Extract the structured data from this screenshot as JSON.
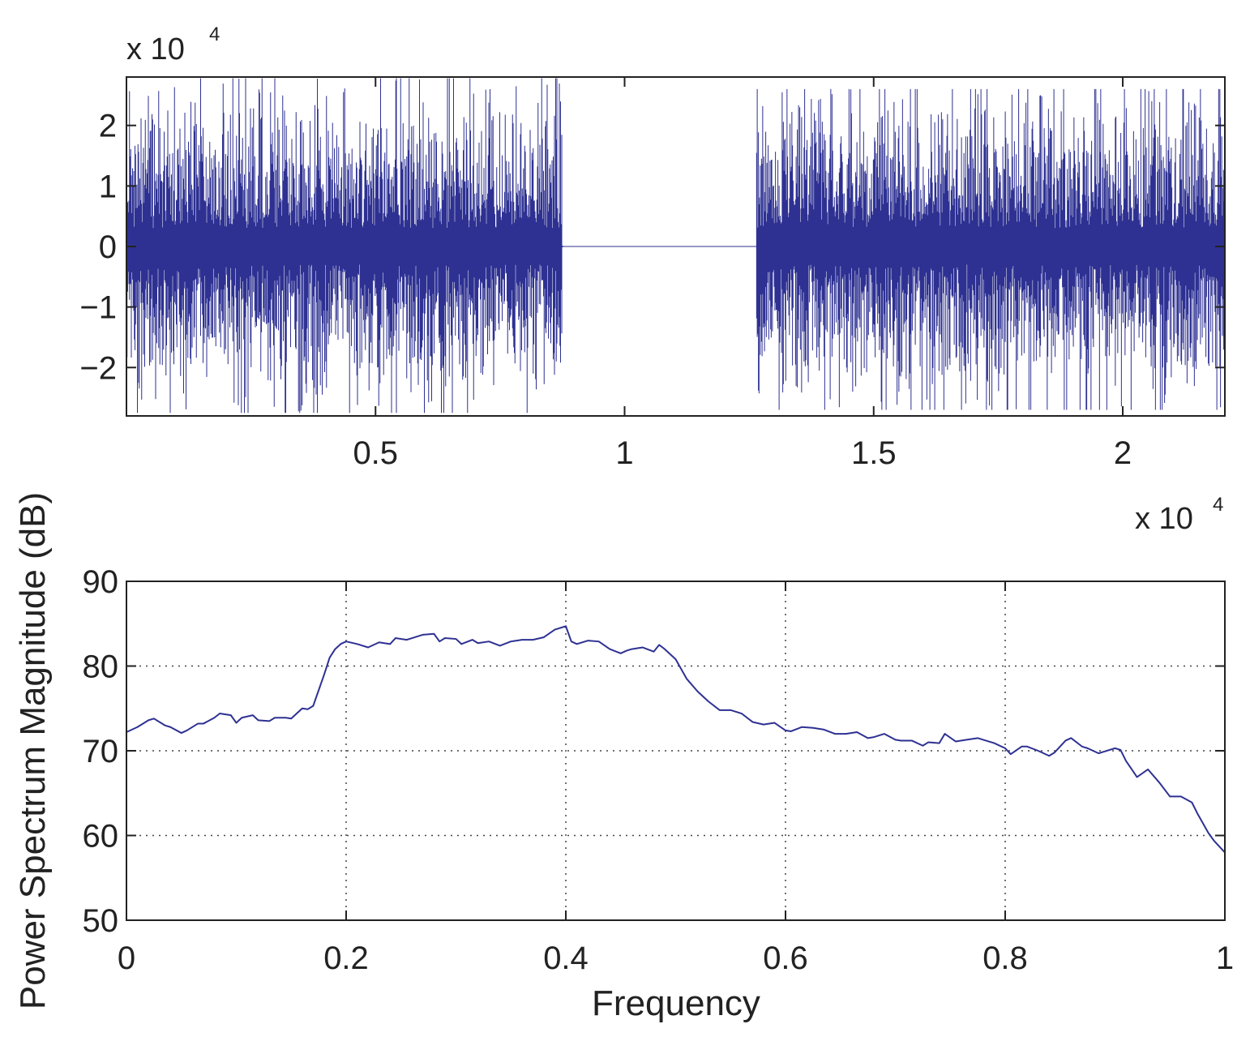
{
  "colors": {
    "line": "#2e3192",
    "axis": "#222222",
    "grid": "#444444",
    "background": "#ffffff"
  },
  "chart_data": [
    {
      "type": "line",
      "title": "",
      "xlabel": "",
      "ylabel": "",
      "xlim": [
        0,
        22050
      ],
      "ylim": [
        -28000,
        28000
      ],
      "x_scale_label": "x 10",
      "x_scale_exp": "4",
      "y_scale_label": "x 10",
      "y_scale_exp": "4",
      "xticks": [
        0.5,
        1,
        1.5,
        2
      ],
      "xtick_labels": [
        "0.5",
        "1",
        "1.5",
        "2"
      ],
      "yticks": [
        -2,
        -1,
        0,
        1,
        2
      ],
      "ytick_labels": [
        "−2",
        "−1",
        "0",
        "1",
        "2"
      ],
      "grid": false,
      "series": [
        {
          "segments": [
            {
              "x_start": 0,
              "x_end": 8750,
              "behavior": "noise",
              "typical_envelope": 20000,
              "peak_max": 27800,
              "peak_min": -27500
            },
            {
              "x_start": 8750,
              "x_end": 12650,
              "behavior": "silence",
              "value": 0
            },
            {
              "x_start": 12650,
              "x_end": 22050,
              "behavior": "noise",
              "typical_envelope": 20000,
              "peak_max": 26000,
              "peak_min": -27000
            }
          ]
        }
      ]
    },
    {
      "type": "line",
      "title": "",
      "xlabel": "Frequency",
      "ylabel": "Power Spectrum Magnitude (dB)",
      "xlim": [
        0,
        1
      ],
      "ylim": [
        50,
        90
      ],
      "xticks": [
        0,
        0.2,
        0.4,
        0.6,
        0.8,
        1
      ],
      "xtick_labels": [
        "0",
        "0.2",
        "0.4",
        "0.6",
        "0.8",
        "1"
      ],
      "yticks": [
        50,
        60,
        70,
        80,
        90
      ],
      "ytick_labels": [
        "50",
        "60",
        "70",
        "80",
        "90"
      ],
      "grid": true,
      "series": [
        {
          "x": [
            0,
            0.01,
            0.02,
            0.025,
            0.035,
            0.04,
            0.05,
            0.055,
            0.065,
            0.07,
            0.08,
            0.085,
            0.095,
            0.1,
            0.105,
            0.115,
            0.12,
            0.13,
            0.135,
            0.145,
            0.15,
            0.16,
            0.165,
            0.17,
            0.18,
            0.185,
            0.19,
            0.195,
            0.2,
            0.21,
            0.22,
            0.23,
            0.24,
            0.245,
            0.255,
            0.26,
            0.27,
            0.28,
            0.285,
            0.29,
            0.3,
            0.305,
            0.315,
            0.32,
            0.33,
            0.34,
            0.35,
            0.36,
            0.37,
            0.38,
            0.39,
            0.4,
            0.405,
            0.41,
            0.42,
            0.43,
            0.44,
            0.45,
            0.455,
            0.46,
            0.47,
            0.48,
            0.485,
            0.49,
            0.5,
            0.51,
            0.52,
            0.53,
            0.54,
            0.55,
            0.56,
            0.57,
            0.58,
            0.59,
            0.6,
            0.605,
            0.615,
            0.625,
            0.635,
            0.645,
            0.655,
            0.665,
            0.675,
            0.68,
            0.69,
            0.7,
            0.705,
            0.715,
            0.725,
            0.73,
            0.74,
            0.745,
            0.755,
            0.765,
            0.775,
            0.78,
            0.79,
            0.8,
            0.805,
            0.815,
            0.82,
            0.83,
            0.84,
            0.845,
            0.855,
            0.86,
            0.87,
            0.875,
            0.885,
            0.89,
            0.9,
            0.905,
            0.91,
            0.92,
            0.93,
            0.94,
            0.95,
            0.96,
            0.97,
            0.975,
            0.985,
            0.99,
            1.0
          ],
          "y": [
            72.2,
            72.8,
            73.6,
            73.8,
            73.0,
            72.8,
            72.1,
            72.4,
            73.2,
            73.2,
            73.9,
            74.4,
            74.2,
            73.3,
            73.9,
            74.2,
            73.6,
            73.5,
            73.9,
            73.9,
            73.8,
            75.0,
            74.9,
            75.3,
            79.0,
            81.0,
            82.0,
            82.6,
            82.9,
            82.6,
            82.2,
            82.8,
            82.6,
            83.3,
            83.1,
            83.3,
            83.7,
            83.8,
            82.9,
            83.3,
            83.2,
            82.6,
            83.1,
            82.7,
            82.9,
            82.4,
            82.9,
            83.1,
            83.1,
            83.4,
            84.3,
            84.7,
            82.9,
            82.6,
            83.0,
            82.9,
            82.0,
            81.5,
            81.8,
            82.0,
            82.2,
            81.7,
            82.5,
            82.0,
            80.8,
            78.5,
            77.0,
            75.8,
            74.8,
            74.8,
            74.4,
            73.4,
            73.1,
            73.3,
            72.4,
            72.3,
            72.8,
            72.7,
            72.5,
            72.0,
            72.0,
            72.2,
            71.5,
            71.6,
            72.0,
            71.3,
            71.2,
            71.2,
            70.6,
            71.0,
            70.9,
            72.0,
            71.1,
            71.3,
            71.5,
            71.3,
            70.9,
            70.3,
            69.6,
            70.5,
            70.5,
            70.0,
            69.4,
            69.8,
            71.2,
            71.5,
            70.5,
            70.3,
            69.7,
            69.9,
            70.3,
            70.1,
            68.8,
            66.9,
            67.8,
            66.3,
            64.6,
            64.6,
            63.9,
            62.6,
            60.3,
            59.4,
            58.0
          ]
        }
      ]
    }
  ]
}
